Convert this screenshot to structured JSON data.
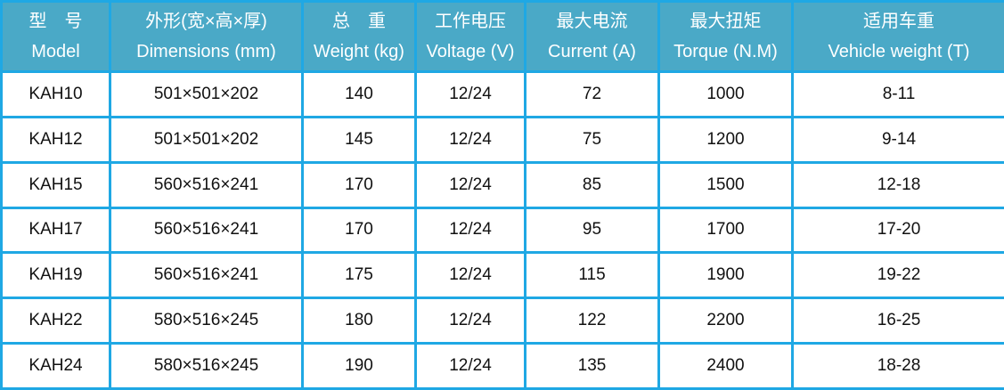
{
  "headers": [
    {
      "zh": "型　号",
      "en": "Model"
    },
    {
      "zh": "外形(宽×高×厚)",
      "en": "Dimensions (mm)"
    },
    {
      "zh": "总　重",
      "en": "Weight (kg)"
    },
    {
      "zh": "工作电压",
      "en": "Voltage (V)"
    },
    {
      "zh": "最大电流",
      "en": "Current (A)"
    },
    {
      "zh": "最大扭矩",
      "en": "Torque (N.M)"
    },
    {
      "zh": "适用车重",
      "en": "Vehicle weight (T)"
    }
  ],
  "rows": [
    [
      "KAH10",
      "501×501×202",
      "140",
      "12/24",
      "72",
      "1000",
      "8-11"
    ],
    [
      "KAH12",
      "501×501×202",
      "145",
      "12/24",
      "75",
      "1200",
      "9-14"
    ],
    [
      "KAH15",
      "560×516×241",
      "170",
      "12/24",
      "85",
      "1500",
      "12-18"
    ],
    [
      "KAH17",
      "560×516×241",
      "170",
      "12/24",
      "95",
      "1700",
      "17-20"
    ],
    [
      "KAH19",
      "560×516×241",
      "175",
      "12/24",
      "115",
      "1900",
      "19-22"
    ],
    [
      "KAH22",
      "580×516×245",
      "180",
      "12/24",
      "122",
      "2200",
      "16-25"
    ],
    [
      "KAH24",
      "580×516×245",
      "190",
      "12/24",
      "135",
      "2400",
      "18-28"
    ]
  ],
  "colors": {
    "header_bg": "#4aa9c7",
    "border": "#1fa8e4"
  }
}
